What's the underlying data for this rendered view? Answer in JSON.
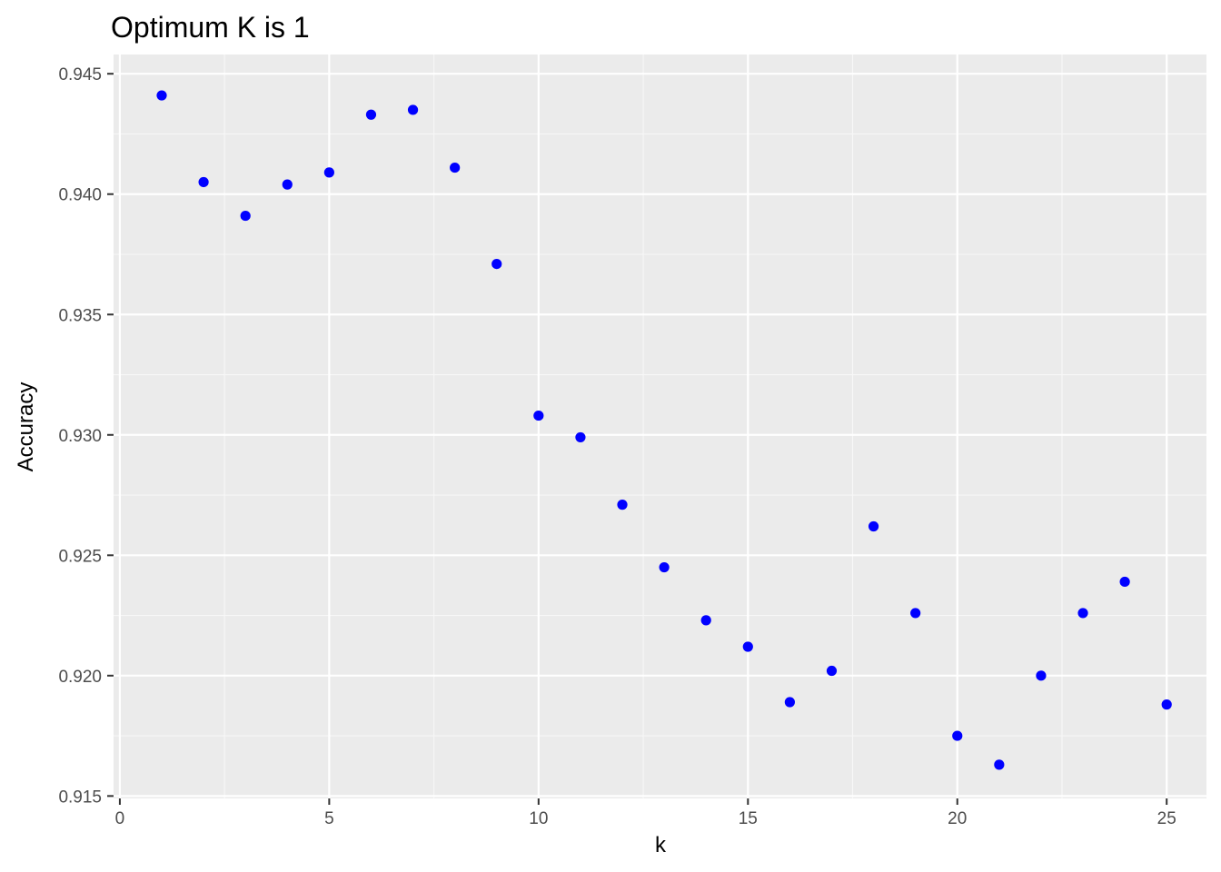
{
  "colors": {
    "panel_background": "#EBEBEB",
    "grid_major": "#FFFFFF",
    "grid_minor": "#F7F7F7",
    "point": "#0000FF",
    "tick_text": "#4D4D4D",
    "axis_tick": "#333333"
  },
  "chart_data": {
    "type": "scatter",
    "title": "Optimum K is  1",
    "xlabel": "k",
    "ylabel": "Accuracy",
    "xlim": [
      -0.15,
      25.95
    ],
    "ylim": [
      0.9149,
      0.9458
    ],
    "x_ticks": [
      0,
      5,
      10,
      15,
      20,
      25
    ],
    "x_tick_labels": [
      "0",
      "5",
      "10",
      "15",
      "20",
      "25"
    ],
    "y_ticks": [
      0.915,
      0.92,
      0.925,
      0.93,
      0.935,
      0.94,
      0.945
    ],
    "y_tick_labels": [
      "0.915",
      "0.920",
      "0.925",
      "0.930",
      "0.935",
      "0.940",
      "0.945"
    ],
    "grid": true,
    "legend": "none",
    "series": [
      {
        "x": [
          1,
          2,
          3,
          4,
          5,
          6,
          7,
          8,
          9,
          10,
          11,
          12,
          13,
          14,
          15,
          16,
          17,
          18,
          19,
          20,
          21,
          22,
          23,
          24,
          25
        ],
        "y": [
          0.9441,
          0.9405,
          0.9391,
          0.9404,
          0.9409,
          0.9433,
          0.9435,
          0.9411,
          0.9371,
          0.9308,
          0.9299,
          0.9271,
          0.9245,
          0.9223,
          0.9212,
          0.9189,
          0.9202,
          0.9262,
          0.9226,
          0.9175,
          0.9163,
          0.92,
          0.9226,
          0.9239,
          0.9188
        ]
      }
    ]
  }
}
